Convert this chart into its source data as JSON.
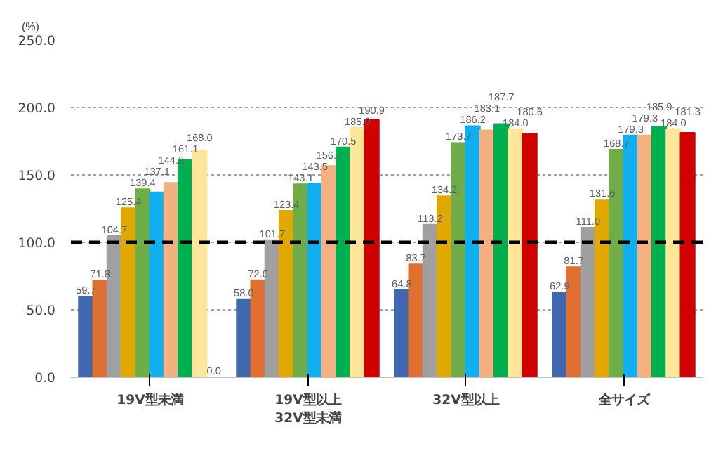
{
  "chart_data": {
    "type": "bar",
    "ylabel": "(%)",
    "categories": [
      "19V型未満",
      "19V型以上\n32V型未満",
      "32V型以上",
      "全サイズ"
    ],
    "series": [
      {
        "color": "#4068b0",
        "values": [
          59.7,
          58.0,
          64.8,
          62.9
        ],
        "value_labels": [
          "59.7",
          "58.0",
          "64.8",
          "62.9"
        ]
      },
      {
        "color": "#e07030",
        "values": [
          71.8,
          72.0,
          83.7,
          81.7
        ],
        "value_labels": [
          "71.8",
          "72.0",
          "83.7",
          "81.7"
        ]
      },
      {
        "color": "#a0a0a0",
        "values": [
          104.7,
          101.7,
          113.2,
          111.0
        ],
        "value_labels": [
          "104.7",
          "101.7",
          "113.2",
          "111.0"
        ]
      },
      {
        "color": "#e0a800",
        "values": [
          125.4,
          123.4,
          134.2,
          131.6
        ],
        "value_labels": [
          "125.4",
          "123.4",
          "134.2",
          "131.6"
        ]
      },
      {
        "color": "#70ac48",
        "values": [
          139.4,
          143.1,
          173.7,
          168.7
        ],
        "value_labels": [
          "139.4",
          "143.1",
          "173.7",
          "168.7"
        ]
      },
      {
        "color": "#10b0f0",
        "values": [
          137.1,
          143.5,
          186.2,
          179.3
        ],
        "value_labels": [
          "137.1",
          "143.5",
          "186.2",
          "179.3"
        ]
      },
      {
        "color": "#f4b080",
        "values": [
          144.2,
          156.7,
          183.1,
          179.3
        ],
        "value_labels": [
          "144.2",
          "156.7",
          "183.1",
          "179.3"
        ]
      },
      {
        "color": "#00b050",
        "values": [
          161.1,
          170.5,
          187.7,
          185.9
        ],
        "value_labels": [
          "161.1",
          "170.5",
          "187.7",
          "185.9"
        ]
      },
      {
        "color": "#ffe699",
        "values": [
          168.0,
          185.0,
          184.0,
          184.0
        ],
        "value_labels": [
          "168.0",
          "185.0",
          "184.0",
          "184.0"
        ]
      },
      {
        "color": "#d00000",
        "values": [
          0.0,
          190.9,
          180.6,
          181.3
        ],
        "value_labels": [
          "0.0",
          "190.9",
          "180.6",
          "181.3"
        ]
      }
    ],
    "ylim": [
      0,
      250
    ],
    "yticks": [
      {
        "value": 0,
        "label": "0.0"
      },
      {
        "value": 50,
        "label": "50.0"
      },
      {
        "value": 100,
        "label": "100.0"
      },
      {
        "value": 150,
        "label": "150.0"
      },
      {
        "value": 200,
        "label": "200.0"
      },
      {
        "value": 250,
        "label": "250.0"
      }
    ],
    "grid": "y",
    "ref_lines": [
      {
        "axis": "y",
        "value": 100,
        "label": null,
        "color": "#000000",
        "line_style": "dashed"
      }
    ]
  }
}
